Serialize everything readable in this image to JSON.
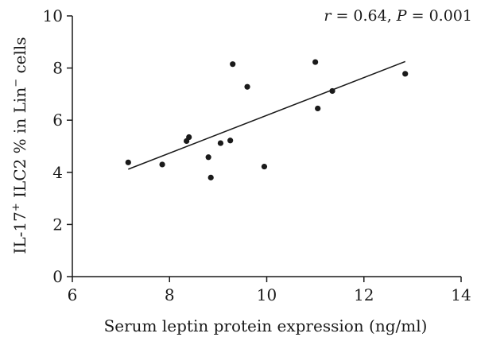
{
  "chart_data": {
    "type": "scatter",
    "title": "",
    "xlabel": "Serum leptin protein expression (ng/ml)",
    "ylabel_parts": {
      "prefix": "IL-17",
      "prefix_sup": "+",
      "middle": " ILC2 % in Lin",
      "suffix_sup": "−",
      "suffix": " cells"
    },
    "annotation": {
      "r_symbol": "r",
      "r_text": " = 0.64, ",
      "p_symbol": "P",
      "p_text": " = 0.001"
    },
    "xlim": [
      6,
      14
    ],
    "ylim": [
      0,
      10
    ],
    "x_ticks": [
      6,
      8,
      10,
      12,
      14
    ],
    "y_ticks": [
      0,
      2,
      4,
      6,
      8,
      10
    ],
    "grid": false,
    "points": [
      {
        "x": 7.15,
        "y": 4.38
      },
      {
        "x": 7.85,
        "y": 4.3
      },
      {
        "x": 8.35,
        "y": 5.2
      },
      {
        "x": 8.4,
        "y": 5.35
      },
      {
        "x": 8.8,
        "y": 4.58
      },
      {
        "x": 8.85,
        "y": 3.8
      },
      {
        "x": 9.05,
        "y": 5.12
      },
      {
        "x": 9.25,
        "y": 5.22
      },
      {
        "x": 9.3,
        "y": 8.15
      },
      {
        "x": 9.6,
        "y": 7.28
      },
      {
        "x": 9.95,
        "y": 4.22
      },
      {
        "x": 11.0,
        "y": 8.23
      },
      {
        "x": 11.05,
        "y": 6.45
      },
      {
        "x": 11.35,
        "y": 7.12
      },
      {
        "x": 12.85,
        "y": 7.78
      }
    ],
    "trendline": {
      "x1": 7.15,
      "y1": 4.12,
      "x2": 12.85,
      "y2": 8.25
    },
    "colors": {
      "points": "#1a1a1a",
      "axis": "#1a1a1a",
      "line": "#1a1a1a"
    }
  }
}
